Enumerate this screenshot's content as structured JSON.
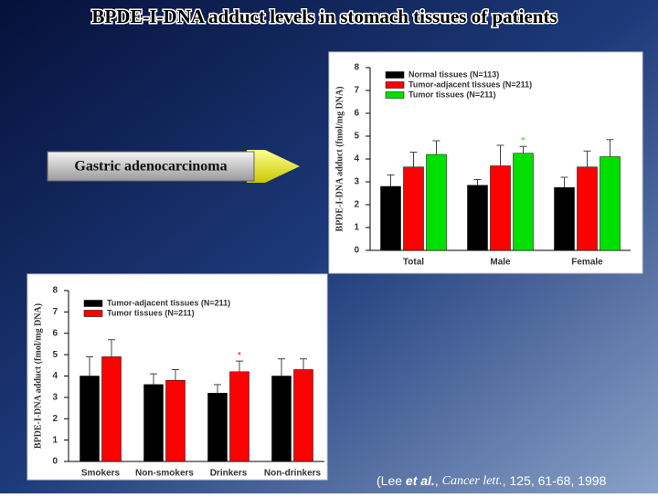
{
  "title": "BPDE-I-DNA adduct levels in stomach tissues of patients",
  "label": "Gastric adenocarcinoma",
  "citation": [
    "(Lee ",
    "et al.",
    ", ",
    "Cancer lett.",
    ", 125, 61-68, 1998"
  ],
  "chart_data": [
    {
      "type": "bar",
      "y_label": "BPDE-I-DNA adduct (fmol/mg DNA)",
      "categories": [
        "Total",
        "Male",
        "Female"
      ],
      "series": [
        {
          "name": "Normal tissues (N=113)",
          "color": "#000000",
          "values": [
            2.8,
            2.85,
            2.75
          ],
          "errors": [
            0.5,
            0.25,
            0.45
          ],
          "marks": [
            null,
            null,
            null
          ]
        },
        {
          "name": "Tumor-adjacent tissues (N=211)",
          "color": "#ff0000",
          "values": [
            3.65,
            3.7,
            3.65
          ],
          "errors": [
            0.65,
            0.9,
            0.7
          ],
          "marks": [
            null,
            null,
            null
          ]
        },
        {
          "name": "Tumor tissues (N=211)",
          "color": "#00e000",
          "values": [
            4.2,
            4.25,
            4.1
          ],
          "errors": [
            0.6,
            0.3,
            0.75
          ],
          "marks": [
            null,
            "*",
            null
          ]
        }
      ],
      "ylim": [
        0,
        8
      ],
      "yticks": [
        0,
        1,
        2,
        3,
        4,
        5,
        6,
        7,
        8
      ],
      "legend": "top-left"
    },
    {
      "type": "bar",
      "y_label": "BPDE-I-DNA adduct (fmol/mg DNA)",
      "categories": [
        "Smokers",
        "Non-smokers",
        "Drinkers",
        "Non-drinkers"
      ],
      "series": [
        {
          "name": "Tumor-adjacent tissues (N=211)",
          "color": "#000000",
          "values": [
            4.0,
            3.6,
            3.2,
            4.0
          ],
          "errors": [
            0.9,
            0.5,
            0.4,
            0.8
          ],
          "marks": [
            null,
            null,
            null,
            null
          ]
        },
        {
          "name": "Tumor tissues (N=211)",
          "color": "#ff0000",
          "values": [
            4.9,
            3.8,
            4.2,
            4.3
          ],
          "errors": [
            0.8,
            0.5,
            0.5,
            0.5
          ],
          "marks": [
            null,
            null,
            "*",
            null
          ]
        }
      ],
      "ylim": [
        0,
        8
      ],
      "yticks": [
        0,
        1,
        2,
        3,
        4,
        5,
        6,
        7,
        8
      ],
      "legend": "top-left"
    }
  ]
}
